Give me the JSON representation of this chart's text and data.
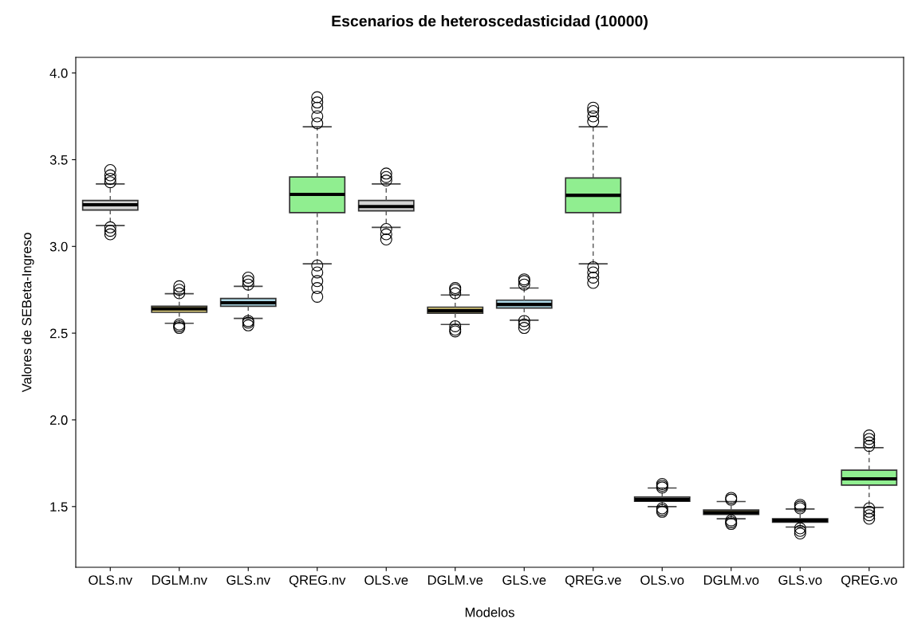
{
  "chart_data": {
    "type": "box",
    "title": "Escenarios de heteroscedasticidad (10000)",
    "xlabel": "Modelos",
    "ylabel": "Valores de SEBeta-Ingreso",
    "categories": [
      "OLS.nv",
      "DGLM.nv",
      "GLS.nv",
      "QREG.nv",
      "OLS.ve",
      "DGLM.ve",
      "GLS.ve",
      "QREG.ve",
      "OLS.vo",
      "DGLM.vo",
      "GLS.vo",
      "QREG.vo"
    ],
    "colors": [
      "#d3d3d3",
      "#eedd82",
      "#add8e6",
      "#90ee90",
      "#d3d3d3",
      "#eedd82",
      "#add8e6",
      "#90ee90",
      "#d3d3d3",
      "#eedd82",
      "#add8e6",
      "#90ee90"
    ],
    "boxes": [
      {
        "low": 3.12,
        "q1": 3.21,
        "median": 3.24,
        "q3": 3.265,
        "high": 3.36,
        "outliers": [
          3.37,
          3.39,
          3.41,
          3.44,
          3.11,
          3.09,
          3.07
        ]
      },
      {
        "low": 2.557,
        "q1": 2.62,
        "median": 2.64,
        "q3": 2.655,
        "high": 2.727,
        "outliers": [
          2.73,
          2.75,
          2.77,
          2.55,
          2.54,
          2.53
        ]
      },
      {
        "low": 2.585,
        "q1": 2.655,
        "median": 2.675,
        "q3": 2.7,
        "high": 2.77,
        "outliers": [
          2.78,
          2.8,
          2.82,
          2.57,
          2.56,
          2.545
        ]
      },
      {
        "low": 2.9,
        "q1": 3.195,
        "median": 3.3,
        "q3": 3.4,
        "high": 3.69,
        "outliers": [
          3.71,
          3.75,
          3.8,
          3.83,
          3.86,
          2.89,
          2.85,
          2.8,
          2.76,
          2.71
        ]
      },
      {
        "low": 3.11,
        "q1": 3.205,
        "median": 3.23,
        "q3": 3.265,
        "high": 3.36,
        "outliers": [
          3.38,
          3.4,
          3.42,
          3.1,
          3.07,
          3.04
        ]
      },
      {
        "low": 2.55,
        "q1": 2.615,
        "median": 2.63,
        "q3": 2.65,
        "high": 2.72,
        "outliers": [
          2.73,
          2.75,
          2.76,
          2.54,
          2.52,
          2.51
        ]
      },
      {
        "low": 2.575,
        "q1": 2.645,
        "median": 2.665,
        "q3": 2.69,
        "high": 2.76,
        "outliers": [
          2.78,
          2.8,
          2.81,
          2.57,
          2.55,
          2.53
        ]
      },
      {
        "low": 2.9,
        "q1": 3.195,
        "median": 3.295,
        "q3": 3.395,
        "high": 3.69,
        "outliers": [
          3.72,
          3.75,
          3.78,
          3.8,
          2.88,
          2.85,
          2.82,
          2.79
        ]
      },
      {
        "low": 1.5,
        "q1": 1.53,
        "median": 1.54,
        "q3": 1.555,
        "high": 1.607,
        "outliers": [
          1.61,
          1.62,
          1.63,
          1.49,
          1.48,
          1.47
        ]
      },
      {
        "low": 1.43,
        "q1": 1.455,
        "median": 1.465,
        "q3": 1.48,
        "high": 1.529,
        "outliers": [
          1.54,
          1.55,
          1.42,
          1.41,
          1.4
        ]
      },
      {
        "low": 1.382,
        "q1": 1.41,
        "median": 1.42,
        "q3": 1.43,
        "high": 1.486,
        "outliers": [
          1.49,
          1.5,
          1.51,
          1.375,
          1.36,
          1.345
        ]
      },
      {
        "low": 1.495,
        "q1": 1.624,
        "median": 1.66,
        "q3": 1.71,
        "high": 1.84,
        "outliers": [
          1.85,
          1.87,
          1.89,
          1.91,
          1.49,
          1.47,
          1.45,
          1.43
        ]
      }
    ],
    "ylim": [
      1.15,
      4.09
    ],
    "yticks": [
      1.5,
      {
        "value": 2,
        "label": "2.0"
      },
      2.5,
      {
        "value": 3,
        "label": "3.0"
      },
      3.5,
      {
        "value": 4,
        "label": "4.0"
      }
    ],
    "grid": false,
    "legend": false
  }
}
